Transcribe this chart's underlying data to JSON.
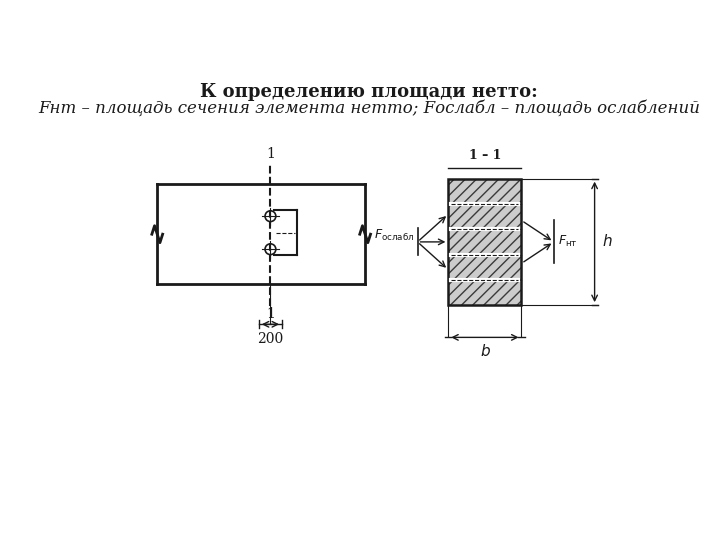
{
  "title_line1": "К определению площади нетто:",
  "title_line2": "Fнт – площадь сечения элемента нетто; Fослабл – площадь ослаблений",
  "bg_color": "#ffffff",
  "line_color": "#1a1a1a",
  "hatch_color": "#3a3a3a",
  "title_fontsize": 13,
  "subtitle_fontsize": 12
}
